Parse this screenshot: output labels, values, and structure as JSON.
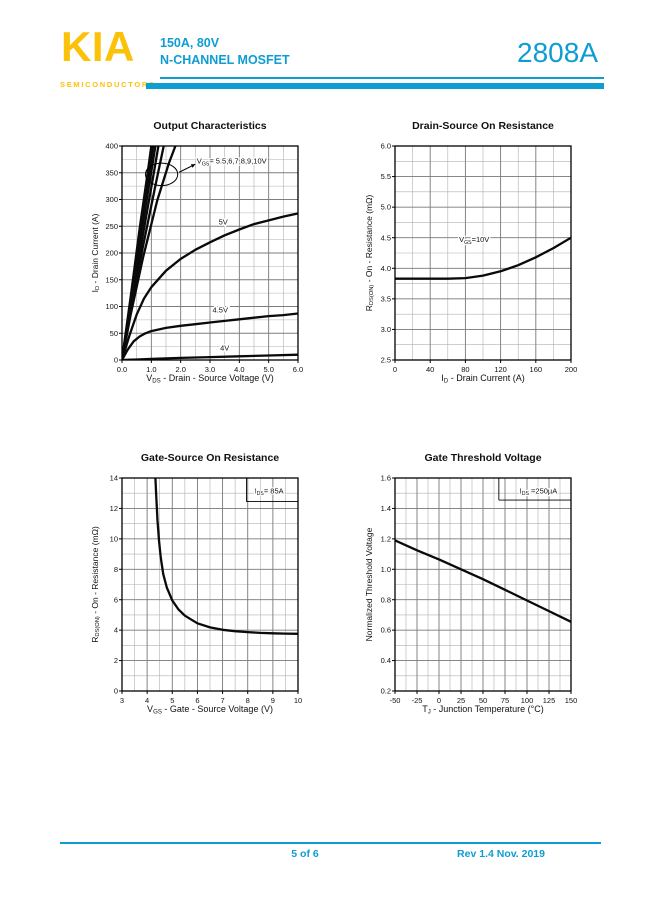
{
  "header": {
    "logo_text": "KIA",
    "logo_sub": "SEMICONDUCTORS",
    "subtitle_line1": "150A,  80V",
    "subtitle_line2": "N-CHANNEL MOSFET",
    "part_number": "2808A",
    "accent_color": "#0e9dd3",
    "logo_color": "#fcc20a"
  },
  "footer": {
    "page_indicator": "5 of 6",
    "revision": "Rev 1.4 Nov. 2019"
  },
  "chart_data": [
    {
      "type": "line",
      "title": "Output Characteristics",
      "xlabel": [
        {
          "t": "V"
        },
        {
          "t": "DS",
          "sub": true
        },
        {
          "t": " - Drain - Source Voltage (V)"
        }
      ],
      "ylabel": [
        {
          "t": "I"
        },
        {
          "t": "D",
          "sub": true
        },
        {
          "t": " - Drain Current (A)"
        }
      ],
      "xlim": [
        0,
        6
      ],
      "ylim": [
        0,
        400
      ],
      "xminor": 0.5,
      "yminor": 25,
      "xticks": [
        {
          "v": 0,
          "l": "0.0"
        },
        {
          "v": 1,
          "l": "1.0"
        },
        {
          "v": 2,
          "l": "2.0"
        },
        {
          "v": 3,
          "l": "3.0"
        },
        {
          "v": 4,
          "l": "4.0"
        },
        {
          "v": 5,
          "l": "5.0"
        },
        {
          "v": 6,
          "l": "6.0"
        }
      ],
      "yticks": [
        {
          "v": 0,
          "l": "0"
        },
        {
          "v": 50,
          "l": "50"
        },
        {
          "v": 100,
          "l": "100"
        },
        {
          "v": 150,
          "l": "150"
        },
        {
          "v": 200,
          "l": "200"
        },
        {
          "v": 250,
          "l": "250"
        },
        {
          "v": 300,
          "l": "300"
        },
        {
          "v": 350,
          "l": "350"
        },
        {
          "v": 400,
          "l": "400"
        }
      ],
      "series": [
        {
          "name": "VGS=10V",
          "points": [
            [
              0,
              0
            ],
            [
              0.3,
              120
            ],
            [
              0.6,
              245
            ],
            [
              0.9,
              360
            ],
            [
              1.0,
              400
            ]
          ]
        },
        {
          "name": "VGS=9V",
          "points": [
            [
              0,
              0
            ],
            [
              0.3,
              115
            ],
            [
              0.6,
              235
            ],
            [
              0.95,
              358
            ],
            [
              1.06,
              400
            ]
          ]
        },
        {
          "name": "VGS=8V",
          "points": [
            [
              0,
              0
            ],
            [
              0.3,
              110
            ],
            [
              0.62,
              225
            ],
            [
              1.0,
              352
            ],
            [
              1.14,
              400
            ]
          ]
        },
        {
          "name": "VGS=7V",
          "points": [
            [
              0,
              0
            ],
            [
              0.3,
              104
            ],
            [
              0.66,
              218
            ],
            [
              1.06,
              342
            ],
            [
              1.24,
              400
            ]
          ]
        },
        {
          "name": "VGS=6V",
          "points": [
            [
              0,
              0
            ],
            [
              0.3,
              96
            ],
            [
              0.7,
              208
            ],
            [
              1.14,
              326
            ],
            [
              1.42,
              400
            ]
          ]
        },
        {
          "name": "VGS=5.5V",
          "points": [
            [
              0,
              0
            ],
            [
              0.3,
              86
            ],
            [
              0.72,
              192
            ],
            [
              1.2,
              298
            ],
            [
              1.6,
              368
            ],
            [
              1.82,
              400
            ]
          ]
        },
        {
          "name": "VGS=5V",
          "points": [
            [
              0,
              0
            ],
            [
              0.25,
              45
            ],
            [
              0.5,
              85
            ],
            [
              0.75,
              115
            ],
            [
              1,
              136
            ],
            [
              1.5,
              167
            ],
            [
              2,
              189
            ],
            [
              2.5,
              206
            ],
            [
              3,
              220
            ],
            [
              3.5,
              233
            ],
            [
              4,
              244
            ],
            [
              4.5,
              254
            ],
            [
              5,
              261
            ],
            [
              5.5,
              268
            ],
            [
              6,
              274
            ]
          ]
        },
        {
          "name": "VGS=4.5V",
          "points": [
            [
              0,
              0
            ],
            [
              0.2,
              20
            ],
            [
              0.4,
              35
            ],
            [
              0.6,
              44
            ],
            [
              0.8,
              50
            ],
            [
              1,
              54
            ],
            [
              1.5,
              60
            ],
            [
              2,
              64
            ],
            [
              2.5,
              67
            ],
            [
              3,
              70
            ],
            [
              3.5,
              73
            ],
            [
              4,
              76
            ],
            [
              4.5,
              79
            ],
            [
              5,
              82
            ],
            [
              5.5,
              84
            ],
            [
              6,
              87
            ]
          ]
        },
        {
          "name": "VGS=4V",
          "points": [
            [
              0,
              0
            ],
            [
              0.5,
              1
            ],
            [
              1,
              2
            ],
            [
              2,
              4
            ],
            [
              3,
              5.5
            ],
            [
              4,
              7
            ],
            [
              5,
              8.5
            ],
            [
              6,
              10
            ]
          ]
        }
      ],
      "curve_labels": [
        {
          "text": "5V",
          "x": 3.45,
          "y": 258
        },
        {
          "text": "4.5V",
          "x": 3.35,
          "y": 93
        },
        {
          "text": "4V",
          "x": 3.5,
          "y": 22
        }
      ],
      "annotations": [
        {
          "segments": [
            {
              "t": "V"
            },
            {
              "t": "GS",
              "sub": true
            },
            {
              "t": "= 5.5,6,7,8,9,10V"
            }
          ],
          "x": 2.55,
          "y": 372,
          "anchor": "start"
        }
      ],
      "ellipse": {
        "cx": 1.35,
        "cy": 347,
        "rx": 0.55,
        "ry": 21
      },
      "arrow": {
        "x1": 1.95,
        "y1": 351,
        "x2": 2.5,
        "y2": 366
      }
    },
    {
      "type": "line",
      "title": "Drain-Source On Resistance",
      "xlabel": [
        {
          "t": "I"
        },
        {
          "t": "D",
          "sub": true
        },
        {
          "t": " - Drain Current (A)"
        }
      ],
      "ylabel": [
        {
          "t": "R"
        },
        {
          "t": "DS(ON)",
          "sub": true
        },
        {
          "t": " - On - Resistance (mΩ)"
        }
      ],
      "xlim": [
        0,
        200
      ],
      "ylim": [
        2.5,
        6.0
      ],
      "xminor": 20,
      "yminor": 0.25,
      "xticks": [
        {
          "v": 0,
          "l": "0"
        },
        {
          "v": 40,
          "l": "40"
        },
        {
          "v": 80,
          "l": "80"
        },
        {
          "v": 120,
          "l": "120"
        },
        {
          "v": 160,
          "l": "160"
        },
        {
          "v": 200,
          "l": "200"
        }
      ],
      "yticks": [
        {
          "v": 2.5,
          "l": "2.5"
        },
        {
          "v": 3.0,
          "l": "3.0"
        },
        {
          "v": 3.5,
          "l": "3.5"
        },
        {
          "v": 4.0,
          "l": "4.0"
        },
        {
          "v": 4.5,
          "l": "4.5"
        },
        {
          "v": 5.0,
          "l": "5.0"
        },
        {
          "v": 5.5,
          "l": "5.5"
        },
        {
          "v": 6.0,
          "l": "6.0"
        }
      ],
      "series": [
        {
          "name": "VGS=10V",
          "points": [
            [
              0,
              3.83
            ],
            [
              20,
              3.83
            ],
            [
              40,
              3.83
            ],
            [
              60,
              3.83
            ],
            [
              80,
              3.84
            ],
            [
              100,
              3.88
            ],
            [
              120,
              3.95
            ],
            [
              140,
              4.05
            ],
            [
              160,
              4.18
            ],
            [
              180,
              4.33
            ],
            [
              200,
              4.5
            ]
          ]
        }
      ],
      "curve_labels": [],
      "annotations": [
        {
          "segments": [
            {
              "t": "V"
            },
            {
              "t": "GS",
              "sub": true
            },
            {
              "t": "=10V"
            }
          ],
          "x": 90,
          "y": 4.47,
          "anchor": "middle"
        }
      ]
    },
    {
      "type": "line",
      "title": "Gate-Source On Resistance",
      "xlabel": [
        {
          "t": "V"
        },
        {
          "t": "GS",
          "sub": true
        },
        {
          "t": " - Gate - Source Voltage (V)"
        }
      ],
      "ylabel": [
        {
          "t": "R"
        },
        {
          "t": "DS(ON)",
          "sub": true
        },
        {
          "t": " - On - Resistance (mΩ)"
        }
      ],
      "xlim": [
        3,
        10
      ],
      "ylim": [
        0,
        14
      ],
      "xminor": 0.5,
      "yminor": 1,
      "xticks": [
        {
          "v": 3,
          "l": "3"
        },
        {
          "v": 4,
          "l": "4"
        },
        {
          "v": 5,
          "l": "5"
        },
        {
          "v": 6,
          "l": "6"
        },
        {
          "v": 7,
          "l": "7"
        },
        {
          "v": 8,
          "l": "8"
        },
        {
          "v": 9,
          "l": "9"
        },
        {
          "v": 10,
          "l": "10"
        }
      ],
      "yticks": [
        {
          "v": 0,
          "l": "0"
        },
        {
          "v": 2,
          "l": "2"
        },
        {
          "v": 4,
          "l": "4"
        },
        {
          "v": 6,
          "l": "6"
        },
        {
          "v": 8,
          "l": "8"
        },
        {
          "v": 10,
          "l": "10"
        },
        {
          "v": 12,
          "l": "12"
        },
        {
          "v": 14,
          "l": "14"
        }
      ],
      "series": [
        {
          "name": "IDS=85A",
          "points": [
            [
              4.33,
              14
            ],
            [
              4.37,
              12.6
            ],
            [
              4.41,
              11.2
            ],
            [
              4.47,
              9.9
            ],
            [
              4.54,
              8.8
            ],
            [
              4.64,
              7.7
            ],
            [
              4.78,
              6.8
            ],
            [
              5,
              5.95
            ],
            [
              5.25,
              5.35
            ],
            [
              5.5,
              4.95
            ],
            [
              6,
              4.45
            ],
            [
              6.5,
              4.18
            ],
            [
              7,
              4.02
            ],
            [
              7.5,
              3.93
            ],
            [
              8,
              3.87
            ],
            [
              8.5,
              3.82
            ],
            [
              9,
              3.79
            ],
            [
              9.5,
              3.77
            ],
            [
              10,
              3.76
            ]
          ]
        }
      ],
      "curve_labels": [],
      "annotations": [
        {
          "segments": [
            {
              "t": "I"
            },
            {
              "t": "DS",
              "sub": true
            },
            {
              "t": "= 85A"
            }
          ],
          "x": 8.85,
          "y": 13.15,
          "anchor": "middle"
        }
      ],
      "ann_lines": [
        [
          7.95,
          12.45,
          10,
          12.45
        ],
        [
          7.95,
          12.45,
          7.95,
          14
        ]
      ]
    },
    {
      "type": "line",
      "title": "Gate Threshold Voltage",
      "xlabel": [
        {
          "t": "T"
        },
        {
          "t": "J",
          "sub": true
        },
        {
          "t": " - Junction Temperature (°C)"
        }
      ],
      "ylabel": [
        {
          "t": "Normalized Threshold Voltage"
        }
      ],
      "xlim": [
        -50,
        150
      ],
      "ylim": [
        0.2,
        1.6
      ],
      "xminor": 12.5,
      "yminor": 0.1,
      "xticks": [
        {
          "v": -50,
          "l": "-50"
        },
        {
          "v": -25,
          "l": "-25"
        },
        {
          "v": 0,
          "l": "0"
        },
        {
          "v": 25,
          "l": "25"
        },
        {
          "v": 50,
          "l": "50"
        },
        {
          "v": 75,
          "l": "75"
        },
        {
          "v": 100,
          "l": "100"
        },
        {
          "v": 125,
          "l": "125"
        },
        {
          "v": 150,
          "l": "150"
        }
      ],
      "yticks": [
        {
          "v": 0.2,
          "l": "0.2"
        },
        {
          "v": 0.4,
          "l": "0.4"
        },
        {
          "v": 0.6,
          "l": "0.6"
        },
        {
          "v": 0.8,
          "l": "0.8"
        },
        {
          "v": 1.0,
          "l": "1.0"
        },
        {
          "v": 1.2,
          "l": "1.2"
        },
        {
          "v": 1.4,
          "l": "1.4"
        },
        {
          "v": 1.6,
          "l": "1.6"
        }
      ],
      "series": [
        {
          "name": "IDS=250uA",
          "points": [
            [
              -50,
              1.19
            ],
            [
              -25,
              1.125
            ],
            [
              0,
              1.065
            ],
            [
              25,
              1.0
            ],
            [
              50,
              0.935
            ],
            [
              75,
              0.865
            ],
            [
              100,
              0.795
            ],
            [
              125,
              0.725
            ],
            [
              150,
              0.655
            ]
          ]
        }
      ],
      "curve_labels": [],
      "annotations": [
        {
          "segments": [
            {
              "t": "I"
            },
            {
              "t": "DS",
              "sub": true
            },
            {
              "t": " =250µA"
            }
          ],
          "x": 113,
          "y": 1.515,
          "anchor": "middle"
        }
      ],
      "ann_lines": [
        [
          68,
          1.455,
          150,
          1.455
        ],
        [
          68,
          1.455,
          68,
          1.6
        ]
      ]
    }
  ]
}
